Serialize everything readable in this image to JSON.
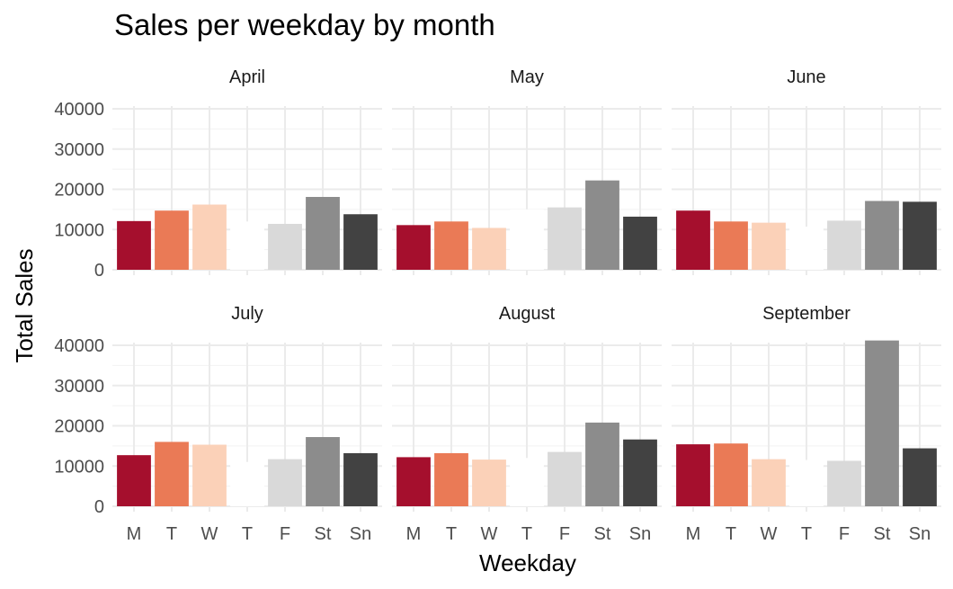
{
  "chart_data": {
    "type": "bar",
    "title": "Sales per weekday by month",
    "xlabel": "Weekday",
    "ylabel": "Total Sales",
    "categories": [
      "M",
      "T",
      "W",
      "T",
      "F",
      "St",
      "Sn"
    ],
    "colors": [
      "#a50f2d",
      "#ea7a56",
      "#fbd1b8",
      "#ffffff",
      "#d9d9d9",
      "#8c8c8c",
      "#424242"
    ],
    "ylim": [
      0,
      42000
    ],
    "yticks": [
      "0",
      "10000",
      "20000",
      "30000",
      "40000"
    ],
    "ytick_values": [
      0,
      10000,
      20000,
      30000,
      40000
    ],
    "grid": true,
    "facet_layout": "3 columns x 2 rows",
    "panels": [
      {
        "month": "April",
        "values": [
          12100,
          14700,
          16200,
          12000,
          11400,
          18100,
          13800
        ]
      },
      {
        "month": "May",
        "values": [
          11100,
          12000,
          10400,
          15000,
          15500,
          22200,
          13200
        ]
      },
      {
        "month": "June",
        "values": [
          14700,
          12000,
          11700,
          10700,
          12200,
          17100,
          16900
        ]
      },
      {
        "month": "July",
        "values": [
          12700,
          16000,
          15300,
          11000,
          11700,
          17200,
          13200
        ]
      },
      {
        "month": "August",
        "values": [
          12200,
          13200,
          11600,
          12000,
          13500,
          20800,
          16600
        ]
      },
      {
        "month": "September",
        "values": [
          15400,
          15600,
          11700,
          11500,
          11300,
          41200,
          14400
        ]
      }
    ]
  }
}
